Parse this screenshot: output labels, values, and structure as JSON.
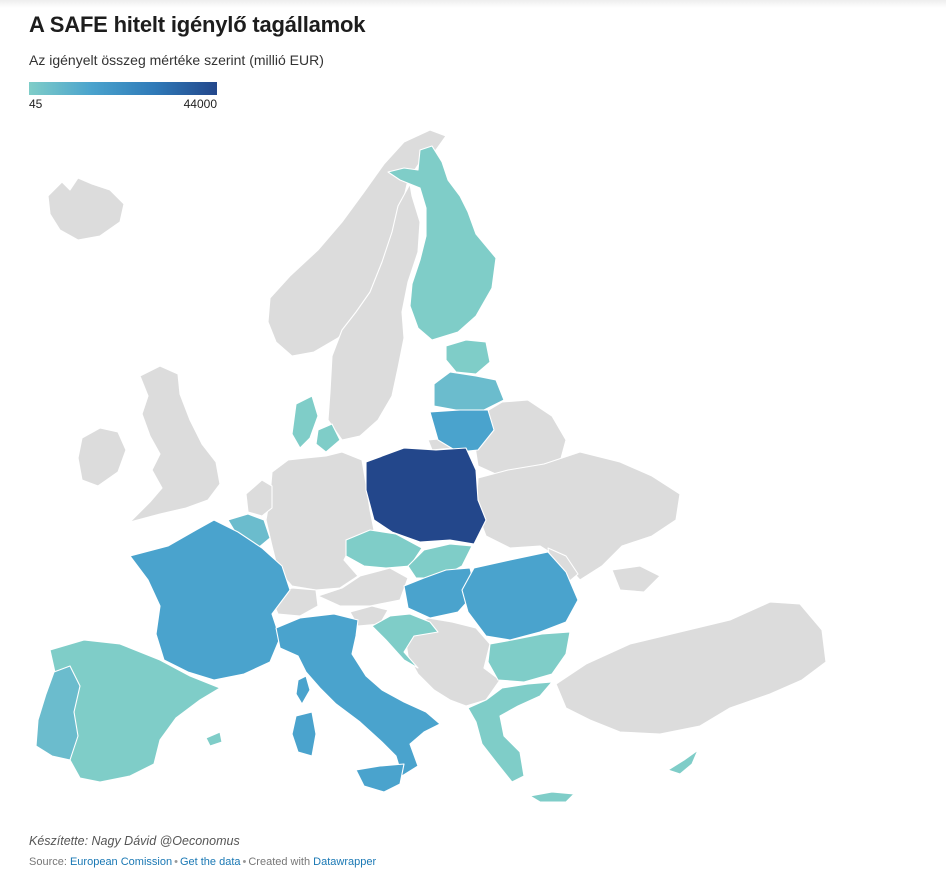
{
  "title": "A SAFE hitelt igénylő tagállamok",
  "subtitle": "Az igényelt összeg mértéke szerint (millió EUR)",
  "legend": {
    "min": "45",
    "max": "44000"
  },
  "colors": {
    "no_data": "#dcdcdc",
    "low": "#7fcdc8",
    "mid_low": "#6bbccd",
    "mid": "#4aa3cd",
    "mid_high": "#3e97c8",
    "high": "#23478b"
  },
  "countries": [
    {
      "name": "Finland",
      "level": "low"
    },
    {
      "name": "Estonia",
      "level": "low"
    },
    {
      "name": "Latvia",
      "level": "mid_low"
    },
    {
      "name": "Lithuania",
      "level": "mid"
    },
    {
      "name": "Poland",
      "level": "high"
    },
    {
      "name": "Denmark",
      "level": "low"
    },
    {
      "name": "Belgium",
      "level": "mid_low"
    },
    {
      "name": "France",
      "level": "mid"
    },
    {
      "name": "Spain",
      "level": "low"
    },
    {
      "name": "Portugal",
      "level": "mid_low"
    },
    {
      "name": "Italy",
      "level": "mid"
    },
    {
      "name": "Czechia",
      "level": "low"
    },
    {
      "name": "Slovakia",
      "level": "low"
    },
    {
      "name": "Hungary",
      "level": "mid"
    },
    {
      "name": "Romania",
      "level": "mid"
    },
    {
      "name": "Bulgaria",
      "level": "low"
    },
    {
      "name": "Croatia",
      "level": "low"
    },
    {
      "name": "Greece",
      "level": "low"
    },
    {
      "name": "Cyprus",
      "level": "low"
    }
  ],
  "credit": "Készítette: Nagy Dávid @Oeconomus",
  "source": {
    "prefix": "Source: ",
    "source_link": "European Comission",
    "get_data": "Get the data",
    "created_with": "Created with ",
    "tool": "Datawrapper"
  }
}
